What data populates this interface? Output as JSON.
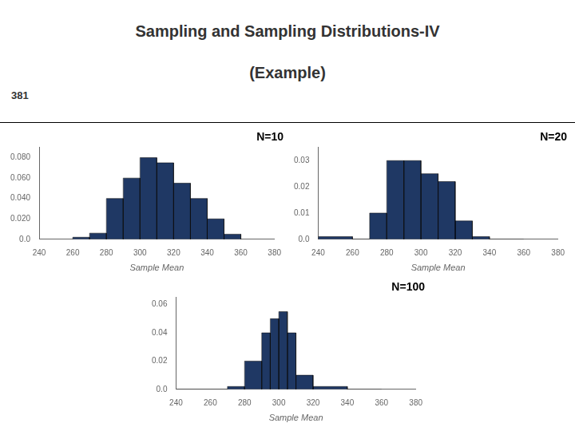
{
  "title": "Sampling and Sampling Distributions-IV",
  "subtitle": "(Example)",
  "annotations": [
    "381"
  ],
  "chart_data": [
    {
      "type": "histogram",
      "title": "N=10",
      "xlabel": "Sample Mean",
      "color": "#1F3864",
      "bins": [
        260,
        270,
        280,
        290,
        300,
        310,
        320,
        330,
        340,
        350,
        360
      ],
      "values": [
        0.002,
        0.006,
        0.04,
        0.06,
        0.08,
        0.075,
        0.055,
        0.04,
        0.02,
        0.005
      ],
      "xlim": [
        240,
        380
      ],
      "xticks": [
        240,
        260,
        280,
        300,
        320,
        340,
        360,
        380
      ],
      "ylim": [
        0,
        0.09
      ],
      "yticks": [
        {
          "value": 0,
          "label": "0.0"
        },
        {
          "value": 0.02,
          "label": "0.020"
        },
        {
          "value": 0.04,
          "label": "0.040"
        },
        {
          "value": 0.06,
          "label": "0.060"
        },
        {
          "value": 0.08,
          "label": "0.080"
        }
      ],
      "grid": false
    },
    {
      "type": "histogram",
      "title": "N=20",
      "xlabel": "Sample Mean",
      "color": "#1F3864",
      "bins": [
        240,
        260,
        270,
        280,
        290,
        300,
        310,
        320,
        330,
        340,
        360
      ],
      "values": [
        0.001,
        0.0,
        0.01,
        0.03,
        0.03,
        0.025,
        0.022,
        0.007,
        0.001,
        0.0
      ],
      "xlim": [
        240,
        380
      ],
      "xticks": [
        240,
        260,
        280,
        300,
        320,
        340,
        360,
        380
      ],
      "ylim": [
        0,
        0.035
      ],
      "yticks": [
        {
          "value": 0,
          "label": "0.0"
        },
        0.01,
        0.02,
        0.03
      ],
      "grid": false
    },
    {
      "type": "histogram",
      "title": "N=100",
      "xlabel": "Sample Mean",
      "color": "#1F3864",
      "bins": [
        240,
        260,
        270,
        280,
        290,
        295,
        300,
        305,
        310,
        320,
        340,
        360
      ],
      "values": [
        0.0,
        0.0,
        0.002,
        0.02,
        0.04,
        0.05,
        0.055,
        0.04,
        0.01,
        0.002,
        0.0
      ],
      "xlim": [
        240,
        380
      ],
      "xticks": [
        240,
        260,
        280,
        300,
        320,
        340,
        360,
        380
      ],
      "ylim": [
        0,
        0.065
      ],
      "yticks": [
        {
          "value": 0,
          "label": "0.0"
        },
        0.02,
        0.04,
        0.06
      ],
      "grid": false
    }
  ]
}
